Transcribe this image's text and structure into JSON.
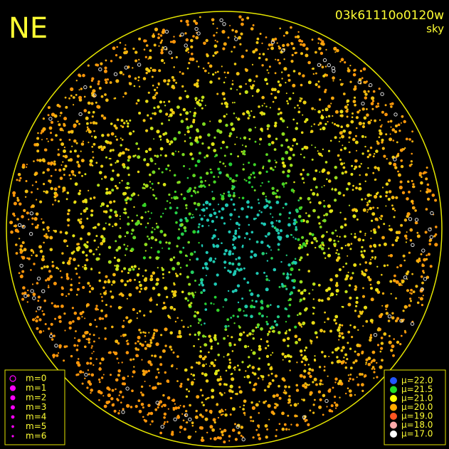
{
  "header": {
    "corner": "NE",
    "title": "03k61110o0120w",
    "subtitle": "sky"
  },
  "legend_left": {
    "items": [
      {
        "label": "m=0",
        "size": 0
      },
      {
        "label": "m=1",
        "size": 1
      },
      {
        "label": "m=2",
        "size": 2
      },
      {
        "label": "m=3",
        "size": 3
      },
      {
        "label": "m=4",
        "size": 4
      },
      {
        "label": "m=5",
        "size": 5
      },
      {
        "label": "m=6",
        "size": 6
      }
    ],
    "color": "#ff00ff"
  },
  "legend_right": {
    "items": [
      {
        "label": "μ=22.0",
        "color": "#2255ff"
      },
      {
        "label": "μ=21.5",
        "color": "#22dd22"
      },
      {
        "label": "μ=21.0",
        "color": "#ffff00"
      },
      {
        "label": "μ=20.0",
        "color": "#ffaa00"
      },
      {
        "label": "μ=19.0",
        "color": "#ff5522"
      },
      {
        "label": "μ=18.0",
        "color": "#ffaaaa"
      },
      {
        "label": "μ=17.0",
        "color": "#ffffff"
      }
    ]
  }
}
